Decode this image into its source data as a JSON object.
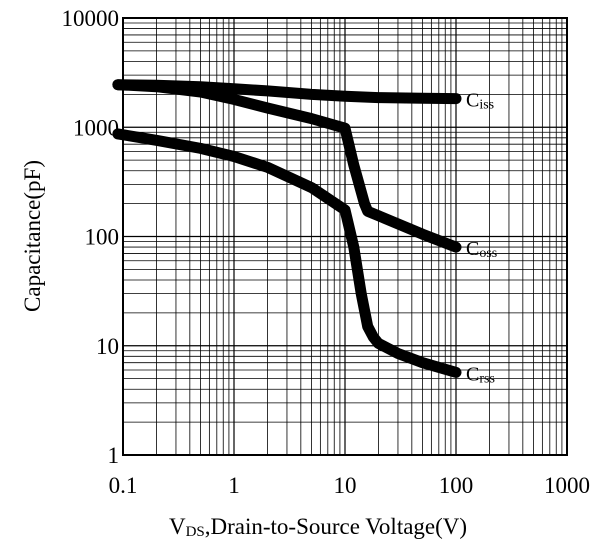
{
  "chart_data": {
    "type": "line",
    "title": "",
    "xlabel": {
      "prefix": "V",
      "subscript": "DS",
      "rest": ",Drain-to-Source Voltage(V)"
    },
    "ylabel": "Capacitance(pF)",
    "x_scale": "log",
    "y_scale": "log",
    "xlim": [
      0.1,
      1000
    ],
    "ylim": [
      1,
      10000
    ],
    "x_tick_labels": [
      "0.1",
      "1",
      "10",
      "100",
      "1000"
    ],
    "y_tick_labels": [
      "10000",
      "1000",
      "100",
      "10",
      "1"
    ],
    "grid": true,
    "legend": "inline labels at line ends",
    "line_color": "#000000",
    "series": [
      {
        "name": "Ciss",
        "label_main": "C",
        "label_sub": "iss",
        "x": [
          0.09,
          0.2,
          0.5,
          1,
          2,
          5,
          10,
          20,
          50,
          100
        ],
        "y": [
          2450,
          2420,
          2350,
          2250,
          2150,
          2000,
          1920,
          1870,
          1840,
          1830
        ]
      },
      {
        "name": "Coss",
        "label_main": "C",
        "label_sub": "oss",
        "x": [
          0.09,
          0.2,
          0.5,
          1,
          2,
          5,
          10,
          12,
          15,
          16,
          20,
          50,
          100
        ],
        "y": [
          2450,
          2350,
          2100,
          1800,
          1500,
          1200,
          980,
          450,
          200,
          170,
          155,
          105,
          80
        ]
      },
      {
        "name": "Crss",
        "label_main": "C",
        "label_sub": "rss",
        "x": [
          0.09,
          0.2,
          0.5,
          1,
          2,
          5,
          10,
          12,
          14,
          16,
          18,
          20,
          30,
          50,
          100
        ],
        "y": [
          870,
          760,
          640,
          540,
          430,
          280,
          175,
          80,
          30,
          15,
          12,
          10.5,
          8.5,
          7,
          5.7
        ]
      }
    ]
  }
}
